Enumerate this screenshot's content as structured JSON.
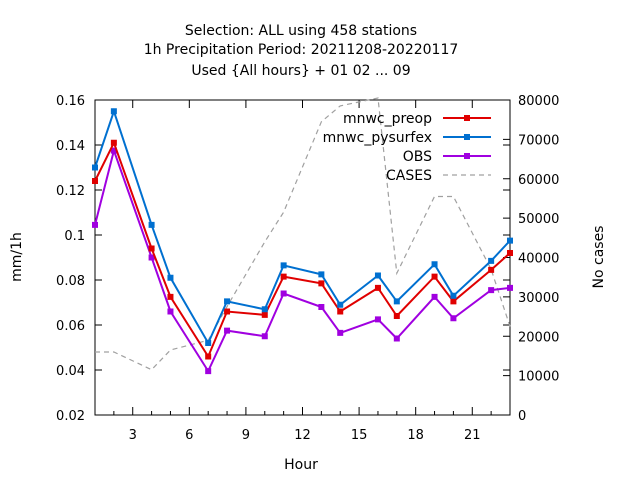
{
  "chart_data": {
    "type": "line",
    "title_lines": [
      "Selection: ALL using   458 stations",
      "1h Precipitation   Period: 20211208-20220117",
      "Used {All hours} + 01 02 ... 09"
    ],
    "xlabel": "Hour",
    "ylabel": "mm/1h",
    "y2label": "No cases",
    "xlim": [
      1,
      23
    ],
    "ylim": [
      0.02,
      0.16
    ],
    "y2lim": [
      0,
      80000
    ],
    "xticks": [
      3,
      6,
      9,
      12,
      15,
      18,
      21
    ],
    "yticks": [
      0.02,
      0.04,
      0.06,
      0.08,
      0.1,
      0.12,
      0.14,
      0.16
    ],
    "yticklabels": [
      "0.02",
      "0.04",
      "0.06",
      "0.08",
      "0.1",
      "0.12",
      "0.14",
      "0.16"
    ],
    "y2ticks": [
      0,
      10000,
      20000,
      30000,
      40000,
      50000,
      60000,
      70000,
      80000
    ],
    "legend_position": "top-right",
    "x": [
      1,
      2,
      4,
      5,
      7,
      8,
      10,
      11,
      13,
      14,
      16,
      17,
      19,
      20,
      22,
      23
    ],
    "series": [
      {
        "name": "mnwc_preop",
        "color": "#e00000",
        "marker": "filled-square",
        "values": [
          0.124,
          0.141,
          0.094,
          0.0725,
          0.046,
          0.066,
          0.0645,
          0.0815,
          0.0785,
          0.066,
          0.0765,
          0.064,
          0.0815,
          0.0705,
          0.0845,
          0.092
        ]
      },
      {
        "name": "mnwc_pysurfex",
        "color": "#0070d0",
        "marker": "filled-square",
        "values": [
          0.13,
          0.155,
          0.1045,
          0.081,
          0.052,
          0.0705,
          0.067,
          0.0865,
          0.0825,
          0.069,
          0.082,
          0.0705,
          0.087,
          0.073,
          0.0885,
          0.0975
        ]
      },
      {
        "name": "OBS",
        "color": "#a000e0",
        "marker": "filled-square",
        "values": [
          0.1045,
          0.1375,
          0.09,
          0.066,
          0.0395,
          0.0575,
          0.055,
          0.074,
          0.068,
          0.0565,
          0.0625,
          0.054,
          0.0725,
          0.063,
          0.0755,
          0.0765
        ]
      },
      {
        "name": "CASES",
        "color": "#a0a0a0",
        "marker": "none",
        "dashed": true,
        "axis": "y2",
        "values": [
          16000,
          16000,
          11500,
          16500,
          19000,
          27500,
          44000,
          51500,
          74500,
          78500,
          80500,
          36000,
          55500,
          55500,
          37000,
          22500
        ]
      }
    ]
  }
}
